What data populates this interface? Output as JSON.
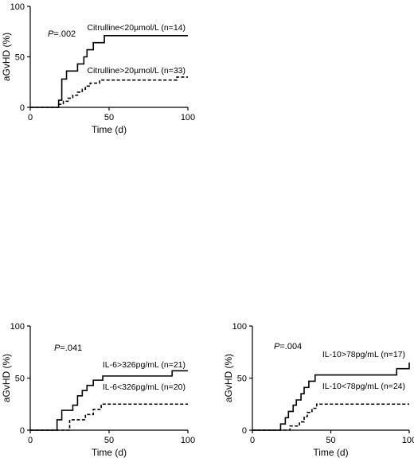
{
  "chart_data": [
    {
      "type": "line",
      "title": "",
      "xlabel": "Time (d)",
      "ylabel": "aGvHD  (%)",
      "xlim": [
        0,
        100
      ],
      "ylim": [
        0,
        100
      ],
      "xticks": [
        "0",
        "50",
        "100"
      ],
      "yticks": [
        "0",
        "50",
        "100"
      ],
      "pvalue_prefix": "P",
      "pvalue_value": "=.002",
      "series": [
        {
          "name": "Citrulline<20µmol/L (n=14)",
          "style": "solid",
          "x": [
            0,
            15,
            18,
            20,
            23,
            27,
            30,
            34,
            36,
            40,
            43,
            47,
            100
          ],
          "y": [
            0,
            0,
            7,
            28,
            36,
            36,
            43,
            50,
            57,
            64,
            64,
            71,
            71
          ]
        },
        {
          "name": "Citrulline>20µmol/L (n=33)",
          "style": "dashed",
          "x": [
            0,
            15,
            18,
            21,
            24,
            27,
            30,
            33,
            35,
            38,
            41,
            44,
            47,
            93,
            100
          ],
          "y": [
            0,
            0,
            3,
            6,
            9,
            12,
            15,
            18,
            21,
            24,
            24,
            27,
            27,
            30,
            30
          ]
        }
      ]
    },
    {
      "type": "line",
      "title": "",
      "xlabel": "Time (d)",
      "ylabel": "aGvHD  (%)",
      "xlim": [
        0,
        100
      ],
      "ylim": [
        0,
        100
      ],
      "xticks": [
        "0",
        "50",
        "100"
      ],
      "yticks": [
        "0",
        "50",
        "100"
      ],
      "pvalue_prefix": "P",
      "pvalue_value": "=.041",
      "series": [
        {
          "name": "IL-6>326pg/mL (n=21)",
          "style": "solid",
          "x": [
            0,
            14,
            17,
            20,
            24,
            27,
            30,
            33,
            36,
            40,
            43,
            46,
            90,
            100
          ],
          "y": [
            0,
            0,
            10,
            19,
            19,
            24,
            33,
            38,
            43,
            48,
            48,
            52,
            57,
            57
          ]
        },
        {
          "name": "IL-6<326pg/mL (n=20)",
          "style": "dashed",
          "x": [
            0,
            20,
            25,
            30,
            35,
            40,
            45,
            100
          ],
          "y": [
            0,
            0,
            10,
            10,
            15,
            20,
            25,
            25
          ]
        }
      ]
    },
    {
      "type": "line",
      "title": "",
      "xlabel": "Time (d)",
      "ylabel": "aGvHD  (%)",
      "xlim": [
        0,
        100
      ],
      "ylim": [
        0,
        100
      ],
      "xticks": [
        "0",
        "50",
        "100"
      ],
      "yticks": [
        "0",
        "50",
        "100"
      ],
      "pvalue_prefix": "P",
      "pvalue_value": "=.004",
      "series": [
        {
          "name": "IL-10>78pg/mL (n=17)",
          "style": "solid",
          "x": [
            0,
            16,
            18,
            21,
            23,
            26,
            28,
            31,
            33,
            36,
            40,
            92,
            100
          ],
          "y": [
            0,
            0,
            6,
            12,
            18,
            24,
            29,
            35,
            41,
            47,
            53,
            59,
            65
          ]
        },
        {
          "name": "IL-10<78pg/mL (n=24)",
          "style": "dashed",
          "x": [
            0,
            20,
            24,
            27,
            30,
            33,
            35,
            38,
            41,
            44,
            100
          ],
          "y": [
            0,
            0,
            4,
            4,
            8,
            13,
            17,
            21,
            25,
            25,
            25
          ]
        }
      ]
    }
  ]
}
